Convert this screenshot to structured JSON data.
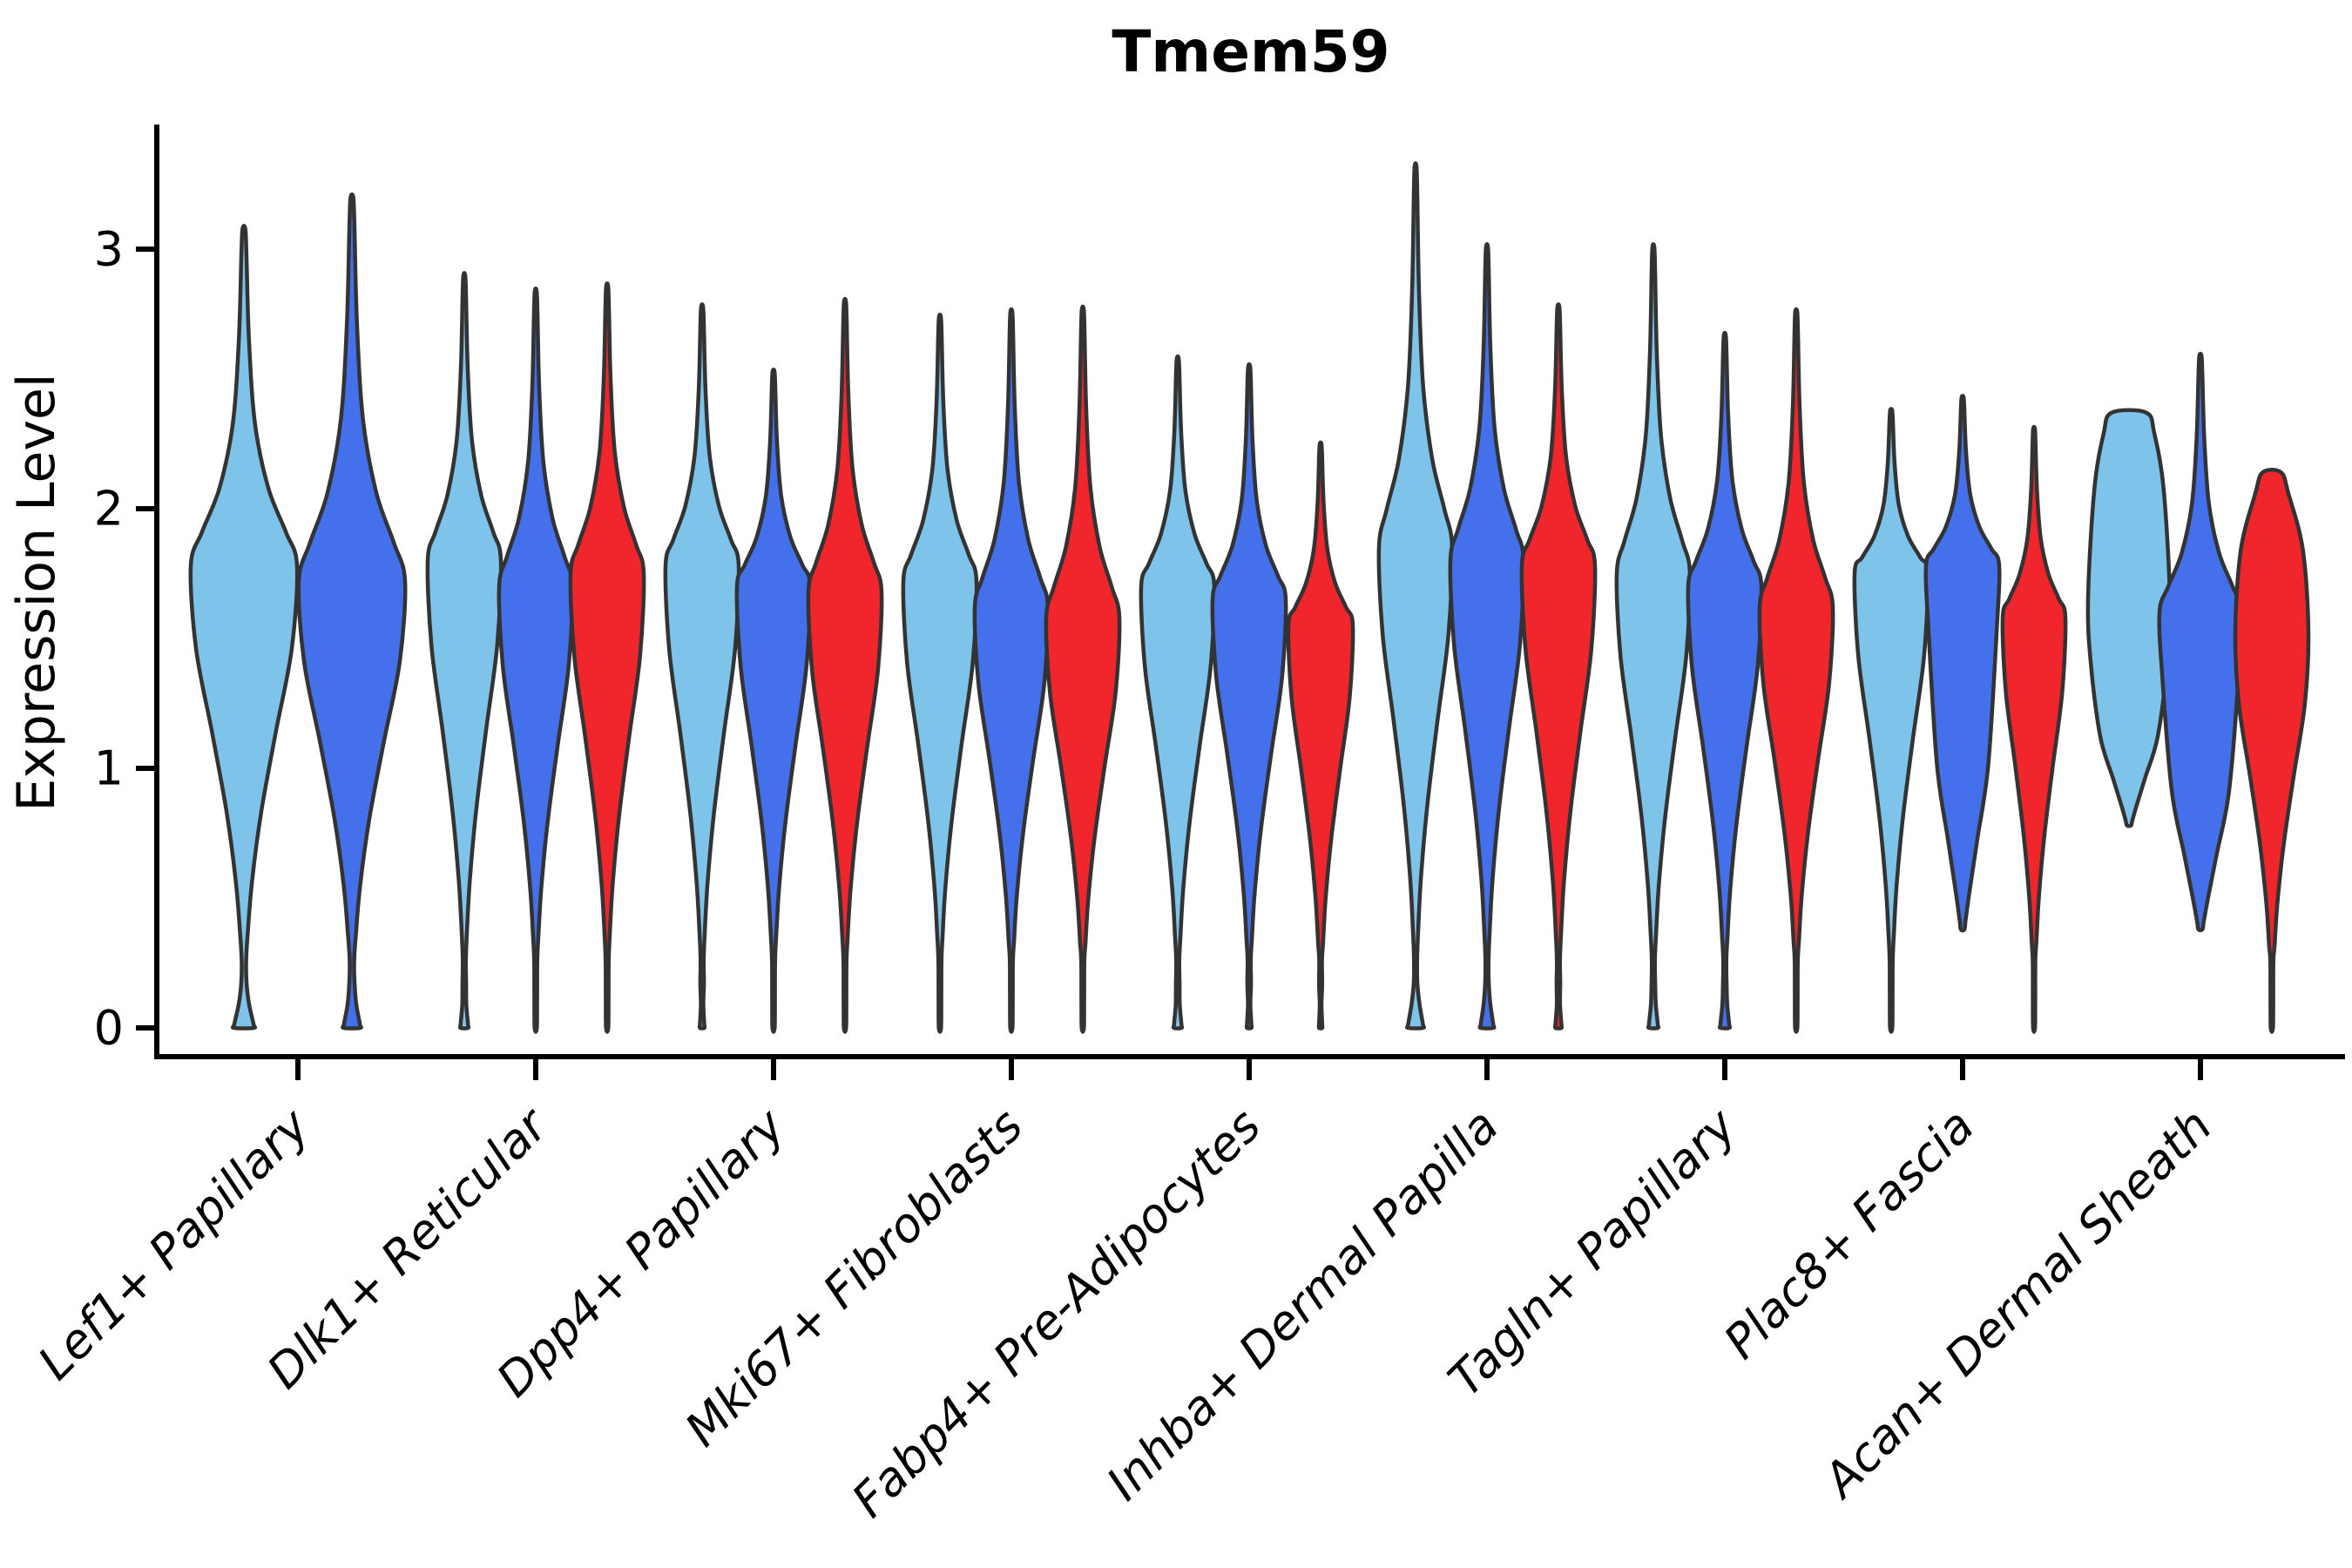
{
  "title": "Tmem59",
  "axes": {
    "ylabel": "Expression Level",
    "yticks": [
      "0",
      "1",
      "2",
      "3"
    ],
    "xlabels": [
      "Lef1+ Papillary",
      "Dlk1+ Reticular",
      "Dpp4+ Papillary",
      "Mki67+ Fibroblasts",
      "Fabp4+ Pre-Adipocytes",
      "Inhba+ Dermal Papilla",
      "Tagln+ Papillary",
      "Plac8+ Fascia",
      "Acan+ Dermal Sheath"
    ]
  },
  "chart_data": {
    "type": "violin",
    "title": "Tmem59",
    "xlabel": "",
    "ylabel": "Expression Level",
    "ylim": [
      -0.12,
      3.47
    ],
    "yticks": [
      0,
      1,
      2,
      3
    ],
    "grid": false,
    "legend": "none",
    "palette": {
      "skyblue": "#7EC3EA",
      "royalblue": "#4470EB",
      "red": "#F0262C",
      "outline": "#333333"
    },
    "categories": [
      "Lef1+ Papillary",
      "Dlk1+ Reticular",
      "Dpp4+ Papillary",
      "Mki67+ Fibroblasts",
      "Fabp4+ Pre-Adipocytes",
      "Inhba+ Dermal Papilla",
      "Tagln+ Papillary",
      "Plac8+ Fascia",
      "Acan+ Dermal Sheath"
    ],
    "groups": [
      {
        "label": "Lef1+ Papillary",
        "violins": [
          {
            "color": "skyblue",
            "tip": 3.08,
            "widest": 1.78,
            "bottom": 0,
            "blob": 0.18
          },
          {
            "color": "royalblue",
            "tip": 3.2,
            "widest": 1.72,
            "bottom": 0,
            "blob": 0.15
          }
        ]
      },
      {
        "label": "Dlk1+ Reticular",
        "violins": [
          {
            "color": "skyblue",
            "tip": 2.9,
            "widest": 1.8,
            "bottom": 0,
            "blob": 0.1
          },
          {
            "color": "royalblue",
            "tip": 2.84,
            "widest": 1.7,
            "bottom": 0,
            "blob": 0
          },
          {
            "color": "red",
            "tip": 2.86,
            "widest": 1.75,
            "bottom": 0,
            "blob": 0
          }
        ]
      },
      {
        "label": "Dpp4+ Papillary",
        "violins": [
          {
            "color": "skyblue",
            "tip": 2.78,
            "widest": 1.78,
            "bottom": 0,
            "blob": 0.06
          },
          {
            "color": "royalblue",
            "tip": 2.53,
            "widest": 1.7,
            "bottom": 0,
            "blob": 0
          },
          {
            "color": "red",
            "tip": 2.8,
            "widest": 1.68,
            "bottom": 0,
            "blob": 0
          }
        ]
      },
      {
        "label": "Mki67+ Fibroblasts",
        "violins": [
          {
            "color": "skyblue",
            "tip": 2.74,
            "widest": 1.72,
            "bottom": 0,
            "blob": 0
          },
          {
            "color": "royalblue",
            "tip": 2.76,
            "widest": 1.62,
            "bottom": 0,
            "blob": 0
          },
          {
            "color": "red",
            "tip": 2.77,
            "widest": 1.58,
            "bottom": 0,
            "blob": 0
          }
        ]
      },
      {
        "label": "Fabp4+ Pre-Adipocytes",
        "violins": [
          {
            "color": "skyblue",
            "tip": 2.58,
            "widest": 1.7,
            "bottom": 0,
            "blob": 0.1
          },
          {
            "color": "royalblue",
            "tip": 2.55,
            "widest": 1.65,
            "bottom": 0,
            "blob": 0.06
          },
          {
            "color": "red",
            "tip": 2.25,
            "widest": 1.55,
            "bottom": 0,
            "blob": 0.05,
            "hw": 37
          }
        ]
      },
      {
        "label": "Inhba+ Dermal Papilla",
        "violins": [
          {
            "color": "skyblue",
            "tip": 3.32,
            "widest": 1.85,
            "bottom": 0,
            "blob": 0.2
          },
          {
            "color": "royalblue",
            "tip": 3.01,
            "widest": 1.8,
            "bottom": 0,
            "blob": 0.17
          },
          {
            "color": "red",
            "tip": 2.78,
            "widest": 1.78,
            "bottom": 0,
            "blob": 0.08
          }
        ]
      },
      {
        "label": "Tagln+ Papillary",
        "violins": [
          {
            "color": "skyblue",
            "tip": 3.01,
            "widest": 1.75,
            "bottom": 0,
            "blob": 0.12
          },
          {
            "color": "royalblue",
            "tip": 2.67,
            "widest": 1.7,
            "bottom": 0,
            "blob": 0.12
          },
          {
            "color": "red",
            "tip": 2.76,
            "widest": 1.62,
            "bottom": 0,
            "blob": 0
          }
        ]
      },
      {
        "label": "Plac8+ Fascia",
        "violins": [
          {
            "color": "skyblue",
            "tip": 2.38,
            "widest": 1.75,
            "bottom": 0,
            "blob": 0
          },
          {
            "color": "royalblue",
            "tip": 2.43,
            "widest": 1.78,
            "bottom": 0.38,
            "blob": 0
          },
          {
            "color": "red",
            "tip": 2.31,
            "widest": 1.58,
            "bottom": 0,
            "blob": 0,
            "hw": 36
          }
        ]
      },
      {
        "label": "Acan+ Dermal Sheath",
        "violins": [
          {
            "color": "skyblue",
            "tip": 2.37,
            "widest": 1.65,
            "bottom": 0.78,
            "blob": 0,
            "flat": 0.42,
            "hw": 47
          },
          {
            "color": "royalblue",
            "tip": 2.59,
            "widest": 1.6,
            "bottom": 0.38,
            "blob": 0,
            "hw": 47
          },
          {
            "color": "red",
            "tip": 2.14,
            "widest": 1.52,
            "bottom": 0,
            "blob": 0,
            "flat": 0.25,
            "hw": 42
          }
        ]
      }
    ]
  }
}
